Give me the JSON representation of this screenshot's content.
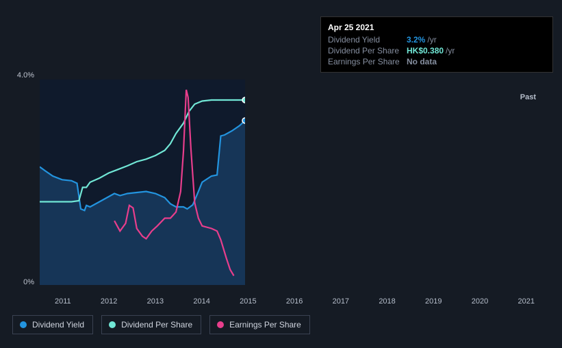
{
  "tooltip": {
    "date": "Apr 25 2021",
    "rows": [
      {
        "label": "Dividend Yield",
        "value": "3.2%",
        "suffix": "/yr",
        "color": "#2394df"
      },
      {
        "label": "Dividend Per Share",
        "value": "HK$0.380",
        "suffix": "/yr",
        "color": "#71e7d6"
      },
      {
        "label": "Earnings Per Share",
        "value": "No data",
        "suffix": "",
        "color": "#868fa0"
      }
    ]
  },
  "chart": {
    "type": "line",
    "background_color": "#0f1a2c",
    "ylim": [
      0,
      4.0
    ],
    "y_ticks": [
      {
        "v": 4.0,
        "label": "4.0%"
      },
      {
        "v": 0,
        "label": "0%"
      }
    ],
    "x_years": [
      "2011",
      "2012",
      "2013",
      "2014",
      "2015",
      "2016",
      "2017",
      "2018",
      "2019",
      "2020",
      "2021"
    ],
    "past_label": "Past",
    "series": {
      "dividend_yield": {
        "color": "#2394df",
        "area": true,
        "points": [
          [
            2010.3,
            2.3
          ],
          [
            2010.6,
            2.22
          ],
          [
            2011.0,
            2.12
          ],
          [
            2011.5,
            2.05
          ],
          [
            2012.0,
            2.03
          ],
          [
            2012.3,
            1.98
          ],
          [
            2012.5,
            1.48
          ],
          [
            2012.7,
            1.45
          ],
          [
            2012.8,
            1.55
          ],
          [
            2013.0,
            1.52
          ],
          [
            2013.5,
            1.62
          ],
          [
            2014.0,
            1.72
          ],
          [
            2014.3,
            1.78
          ],
          [
            2014.6,
            1.74
          ],
          [
            2015.0,
            1.78
          ],
          [
            2015.5,
            1.8
          ],
          [
            2016.0,
            1.82
          ],
          [
            2016.5,
            1.78
          ],
          [
            2017.0,
            1.7
          ],
          [
            2017.3,
            1.58
          ],
          [
            2017.6,
            1.52
          ],
          [
            2018.0,
            1.52
          ],
          [
            2018.2,
            1.48
          ],
          [
            2018.5,
            1.56
          ],
          [
            2018.8,
            1.82
          ],
          [
            2019.0,
            2.0
          ],
          [
            2019.5,
            2.12
          ],
          [
            2019.8,
            2.14
          ],
          [
            2020.0,
            2.9
          ],
          [
            2020.2,
            2.92
          ],
          [
            2020.6,
            3.0
          ],
          [
            2021.0,
            3.1
          ],
          [
            2021.3,
            3.2
          ]
        ]
      },
      "dividend_per_share": {
        "color": "#71e7d6",
        "points": [
          [
            2010.3,
            1.62
          ],
          [
            2011.0,
            1.62
          ],
          [
            2011.5,
            1.62
          ],
          [
            2012.0,
            1.62
          ],
          [
            2012.4,
            1.64
          ],
          [
            2012.6,
            1.9
          ],
          [
            2012.8,
            1.9
          ],
          [
            2013.0,
            2.0
          ],
          [
            2013.5,
            2.08
          ],
          [
            2014.0,
            2.18
          ],
          [
            2014.5,
            2.25
          ],
          [
            2015.0,
            2.32
          ],
          [
            2015.5,
            2.4
          ],
          [
            2016.0,
            2.45
          ],
          [
            2016.5,
            2.52
          ],
          [
            2017.0,
            2.62
          ],
          [
            2017.3,
            2.75
          ],
          [
            2017.6,
            2.95
          ],
          [
            2018.0,
            3.15
          ],
          [
            2018.3,
            3.38
          ],
          [
            2018.6,
            3.52
          ],
          [
            2019.0,
            3.58
          ],
          [
            2019.5,
            3.6
          ],
          [
            2020.0,
            3.6
          ],
          [
            2020.5,
            3.6
          ],
          [
            2021.0,
            3.6
          ],
          [
            2021.3,
            3.6
          ]
        ]
      },
      "earnings_per_share": {
        "color": "#e83e8c",
        "points": [
          [
            2014.3,
            1.25
          ],
          [
            2014.6,
            1.05
          ],
          [
            2014.9,
            1.2
          ],
          [
            2015.1,
            1.55
          ],
          [
            2015.3,
            1.5
          ],
          [
            2015.5,
            1.1
          ],
          [
            2015.8,
            0.95
          ],
          [
            2016.0,
            0.9
          ],
          [
            2016.3,
            1.05
          ],
          [
            2016.6,
            1.15
          ],
          [
            2017.0,
            1.3
          ],
          [
            2017.3,
            1.3
          ],
          [
            2017.6,
            1.42
          ],
          [
            2017.85,
            1.82
          ],
          [
            2018.0,
            2.6
          ],
          [
            2018.15,
            3.8
          ],
          [
            2018.25,
            3.65
          ],
          [
            2018.4,
            2.65
          ],
          [
            2018.6,
            1.6
          ],
          [
            2018.8,
            1.3
          ],
          [
            2019.0,
            1.15
          ],
          [
            2019.5,
            1.1
          ],
          [
            2019.8,
            1.05
          ],
          [
            2020.0,
            0.88
          ],
          [
            2020.3,
            0.52
          ],
          [
            2020.5,
            0.3
          ],
          [
            2020.7,
            0.18
          ]
        ]
      }
    },
    "end_markers": [
      {
        "series": "dividend_per_share",
        "x": 2021.3,
        "y": 3.6
      },
      {
        "series": "dividend_yield",
        "x": 2021.3,
        "y": 3.2
      }
    ]
  },
  "legend": [
    {
      "label": "Dividend Yield",
      "color": "#2394df"
    },
    {
      "label": "Dividend Per Share",
      "color": "#71e7d6"
    },
    {
      "label": "Earnings Per Share",
      "color": "#e83e8c"
    }
  ]
}
